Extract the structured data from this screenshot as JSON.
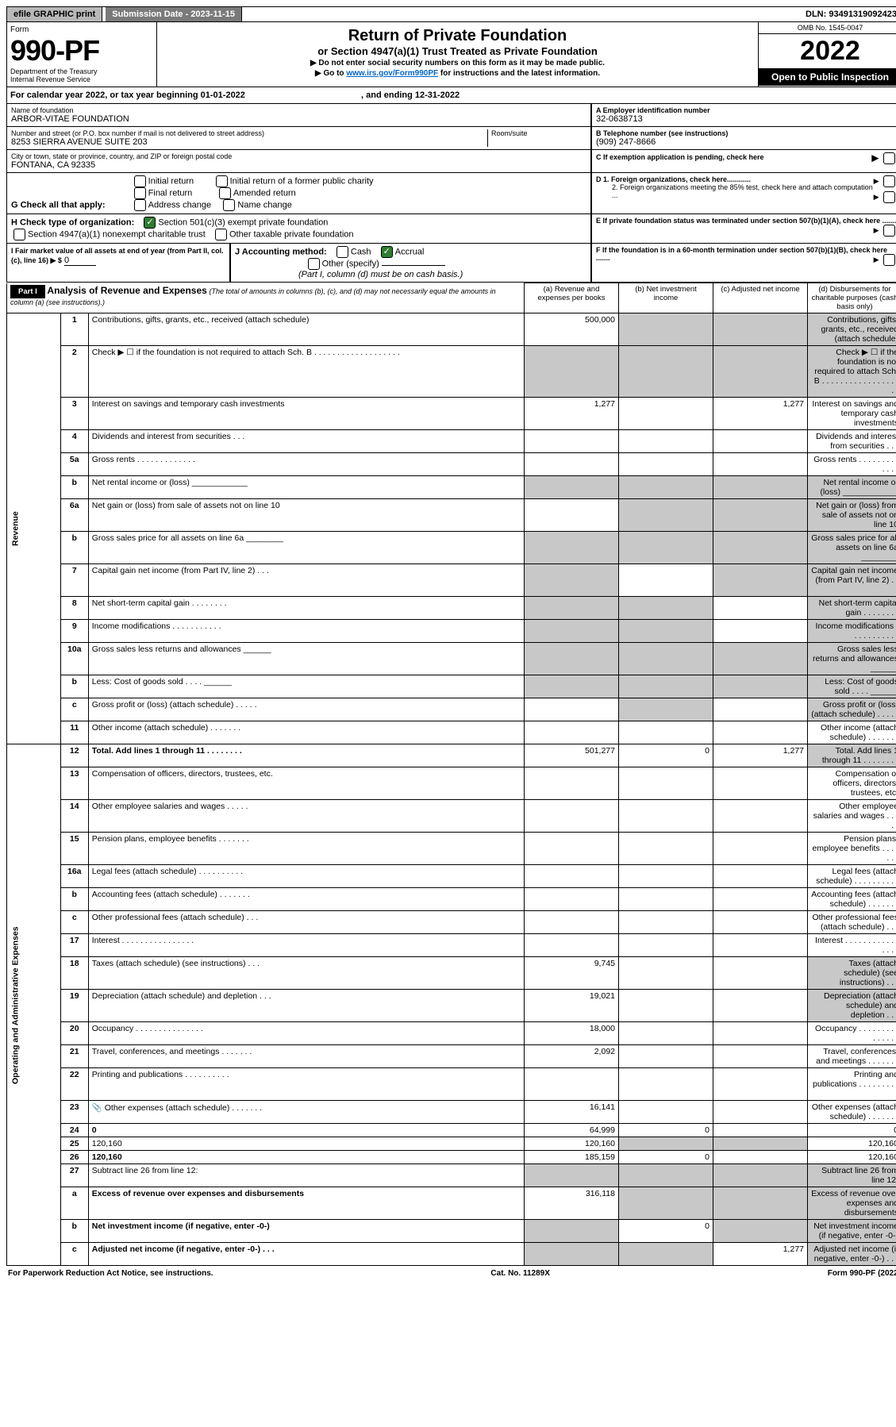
{
  "topbar": {
    "efile": "efile GRAPHIC print",
    "subdate_label": "Submission Date - 2023-11-15",
    "dln": "DLN: 93491319092423"
  },
  "hdr": {
    "form": "Form",
    "num": "990-PF",
    "dept": "Department of the Treasury",
    "irs": "Internal Revenue Service",
    "title": "Return of Private Foundation",
    "sub": "or Section 4947(a)(1) Trust Treated as Private Foundation",
    "note1": "▶ Do not enter social security numbers on this form as it may be made public.",
    "note2": "▶ Go to ",
    "link": "www.irs.gov/Form990PF",
    "note2b": " for instructions and the latest information.",
    "omb": "OMB No. 1545-0047",
    "year": "2022",
    "inspect": "Open to Public Inspection"
  },
  "cal": {
    "a": "For calendar year 2022, or tax year beginning 01-01-2022",
    "b": ", and ending 12-31-2022"
  },
  "name": {
    "label": "Name of foundation",
    "val": "ARBOR-VITAE FOUNDATION"
  },
  "addr": {
    "label": "Number and street (or P.O. box number if mail is not delivered to street address)",
    "val": "8253 SIERRA AVENUE SUITE 203",
    "room": "Room/suite"
  },
  "city": {
    "label": "City or town, state or province, country, and ZIP or foreign postal code",
    "val": "FONTANA, CA  92335"
  },
  "ein": {
    "label": "A Employer identification number",
    "val": "32-0638713"
  },
  "tel": {
    "label": "B Telephone number (see instructions)",
    "val": "(909) 247-8666"
  },
  "bC": "C If exemption application is pending, check here",
  "G": {
    "label": "G Check all that apply:",
    "opts": [
      "Initial return",
      "Final return",
      "Address change",
      "Initial return of a former public charity",
      "Amended return",
      "Name change"
    ]
  },
  "bD1": "D 1. Foreign organizations, check here............",
  "bD2": "2. Foreign organizations meeting the 85% test, check here and attach computation ...",
  "bE": "E  If private foundation status was terminated under section 507(b)(1)(A), check here .......",
  "H": {
    "label": "H Check type of organization:",
    "o1": "Section 501(c)(3) exempt private foundation",
    "o2": "Section 4947(a)(1) nonexempt charitable trust",
    "o3": "Other taxable private foundation"
  },
  "I": {
    "label": "I Fair market value of all assets at end of year (from Part II, col. (c), line 16) ▶ $",
    "val": "0"
  },
  "J": {
    "label": "J Accounting method:",
    "cash": "Cash",
    "accr": "Accrual",
    "other": "Other (specify)",
    "note": "(Part I, column (d) must be on cash basis.)"
  },
  "bF": "F  If the foundation is in a 60-month termination under section 507(b)(1)(B), check here .......",
  "part1": {
    "label": "Part I",
    "title": "Analysis of Revenue and Expenses",
    "sub": "(The total of amounts in columns (b), (c), and (d) may not necessarily equal the amounts in column (a) (see instructions).)",
    "ca": "(a)   Revenue and expenses per books",
    "cb": "(b)   Net investment income",
    "cc": "(c)   Adjusted net income",
    "cd": "(d)   Disbursements for charitable purposes (cash basis only)"
  },
  "revlabel": "Revenue",
  "oplabel": "Operating and Administrative Expenses",
  "rows": [
    {
      "n": "1",
      "d": "Contributions, gifts, grants, etc., received (attach schedule)",
      "a": "500,000",
      "shade": [
        "b",
        "c",
        "d"
      ]
    },
    {
      "n": "2",
      "d": "Check ▶ ☐ if the foundation is not required to attach Sch. B . . . . . . . . . . . . . . . . . . .",
      "shade": [
        "a",
        "b",
        "c",
        "d"
      ]
    },
    {
      "n": "3",
      "d": "Interest on savings and temporary cash investments",
      "a": "1,277",
      "c": "1,277"
    },
    {
      "n": "4",
      "d": "Dividends and interest from securities   .  .  ."
    },
    {
      "n": "5a",
      "d": "Gross rents   .  .  .  .  .  .  .  .  .  .  .  .  ."
    },
    {
      "n": "b",
      "d": "Net rental income or (loss)  ____________",
      "shade": [
        "a",
        "b",
        "c",
        "d"
      ]
    },
    {
      "n": "6a",
      "d": "Net gain or (loss) from sale of assets not on line 10",
      "shade": [
        "b",
        "c",
        "d"
      ]
    },
    {
      "n": "b",
      "d": "Gross sales price for all assets on line 6a ________",
      "shade": [
        "a",
        "b",
        "c",
        "d"
      ]
    },
    {
      "n": "7",
      "d": "Capital gain net income (from Part IV, line 2)   .  .  .",
      "shade": [
        "a",
        "c",
        "d"
      ]
    },
    {
      "n": "8",
      "d": "Net short-term capital gain   .  .  .  .  .  .  .  .",
      "shade": [
        "a",
        "b",
        "d"
      ]
    },
    {
      "n": "9",
      "d": "Income modifications .  .  .  .  .  .  .  .  .  .  .",
      "shade": [
        "a",
        "b",
        "d"
      ]
    },
    {
      "n": "10a",
      "d": "Gross sales less returns and allowances  ______",
      "shade": [
        "a",
        "b",
        "c",
        "d"
      ]
    },
    {
      "n": "b",
      "d": "Less: Cost of goods sold   .  .  .  .  ______",
      "shade": [
        "a",
        "b",
        "c",
        "d"
      ]
    },
    {
      "n": "c",
      "d": "Gross profit or (loss) (attach schedule)   .  .  .  .  .",
      "shade": [
        "b",
        "d"
      ]
    },
    {
      "n": "11",
      "d": "Other income (attach schedule)   .  .  .  .  .  .  ."
    },
    {
      "n": "12",
      "d": "Total. Add lines 1 through 11   .  .  .  .  .  .  .  .",
      "bold": true,
      "a": "501,277",
      "b": "0",
      "c": "1,277",
      "shade": [
        "d"
      ]
    },
    {
      "n": "13",
      "d": "Compensation of officers, directors, trustees, etc."
    },
    {
      "n": "14",
      "d": "Other employee salaries and wages   .  .  .  .  ."
    },
    {
      "n": "15",
      "d": "Pension plans, employee benefits .  .  .  .  .  .  ."
    },
    {
      "n": "16a",
      "d": "Legal fees (attach schedule) .  .  .  .  .  .  .  .  .  ."
    },
    {
      "n": "b",
      "d": "Accounting fees (attach schedule) .  .  .  .  .  .  ."
    },
    {
      "n": "c",
      "d": "Other professional fees (attach schedule)   .  .  ."
    },
    {
      "n": "17",
      "d": "Interest .  .  .  .  .  .  .  .  .  .  .  .  .  .  .  ."
    },
    {
      "n": "18",
      "d": "Taxes (attach schedule) (see instructions)   .  .  .",
      "a": "9,745",
      "shade": [
        "d"
      ]
    },
    {
      "n": "19",
      "d": "Depreciation (attach schedule) and depletion   .  .  .",
      "a": "19,021",
      "shade": [
        "d"
      ]
    },
    {
      "n": "20",
      "d": "Occupancy .  .  .  .  .  .  .  .  .  .  .  .  .  .  .",
      "a": "18,000"
    },
    {
      "n": "21",
      "d": "Travel, conferences, and meetings .  .  .  .  .  .  .",
      "a": "2,092"
    },
    {
      "n": "22",
      "d": "Printing and publications .  .  .  .  .  .  .  .  .  ."
    },
    {
      "n": "23",
      "d": "Other expenses (attach schedule) .  .  .  .  .  .  .",
      "a": "16,141",
      "icon": true
    },
    {
      "n": "24",
      "d": "0",
      "bold": true,
      "a": "64,999",
      "b": "0"
    },
    {
      "n": "25",
      "d": "120,160",
      "a": "120,160",
      "shade": [
        "b",
        "c"
      ]
    },
    {
      "n": "26",
      "d": "120,160",
      "bold": true,
      "a": "185,159",
      "b": "0"
    },
    {
      "n": "27",
      "d": "Subtract line 26 from line 12:",
      "shade": [
        "a",
        "b",
        "c",
        "d"
      ]
    },
    {
      "n": "a",
      "d": "Excess of revenue over expenses and disbursements",
      "bold": true,
      "a": "316,118",
      "shade": [
        "b",
        "c",
        "d"
      ]
    },
    {
      "n": "b",
      "d": "Net investment income (if negative, enter -0-)",
      "bold": true,
      "b": "0",
      "shade": [
        "a",
        "c",
        "d"
      ]
    },
    {
      "n": "c",
      "d": "Adjusted net income (if negative, enter -0-)   .  .  .",
      "bold": true,
      "c": "1,277",
      "shade": [
        "a",
        "b",
        "d"
      ]
    }
  ],
  "footer": {
    "l": "For Paperwork Reduction Act Notice, see instructions.",
    "m": "Cat. No. 11289X",
    "r": "Form 990-PF (2022)"
  }
}
